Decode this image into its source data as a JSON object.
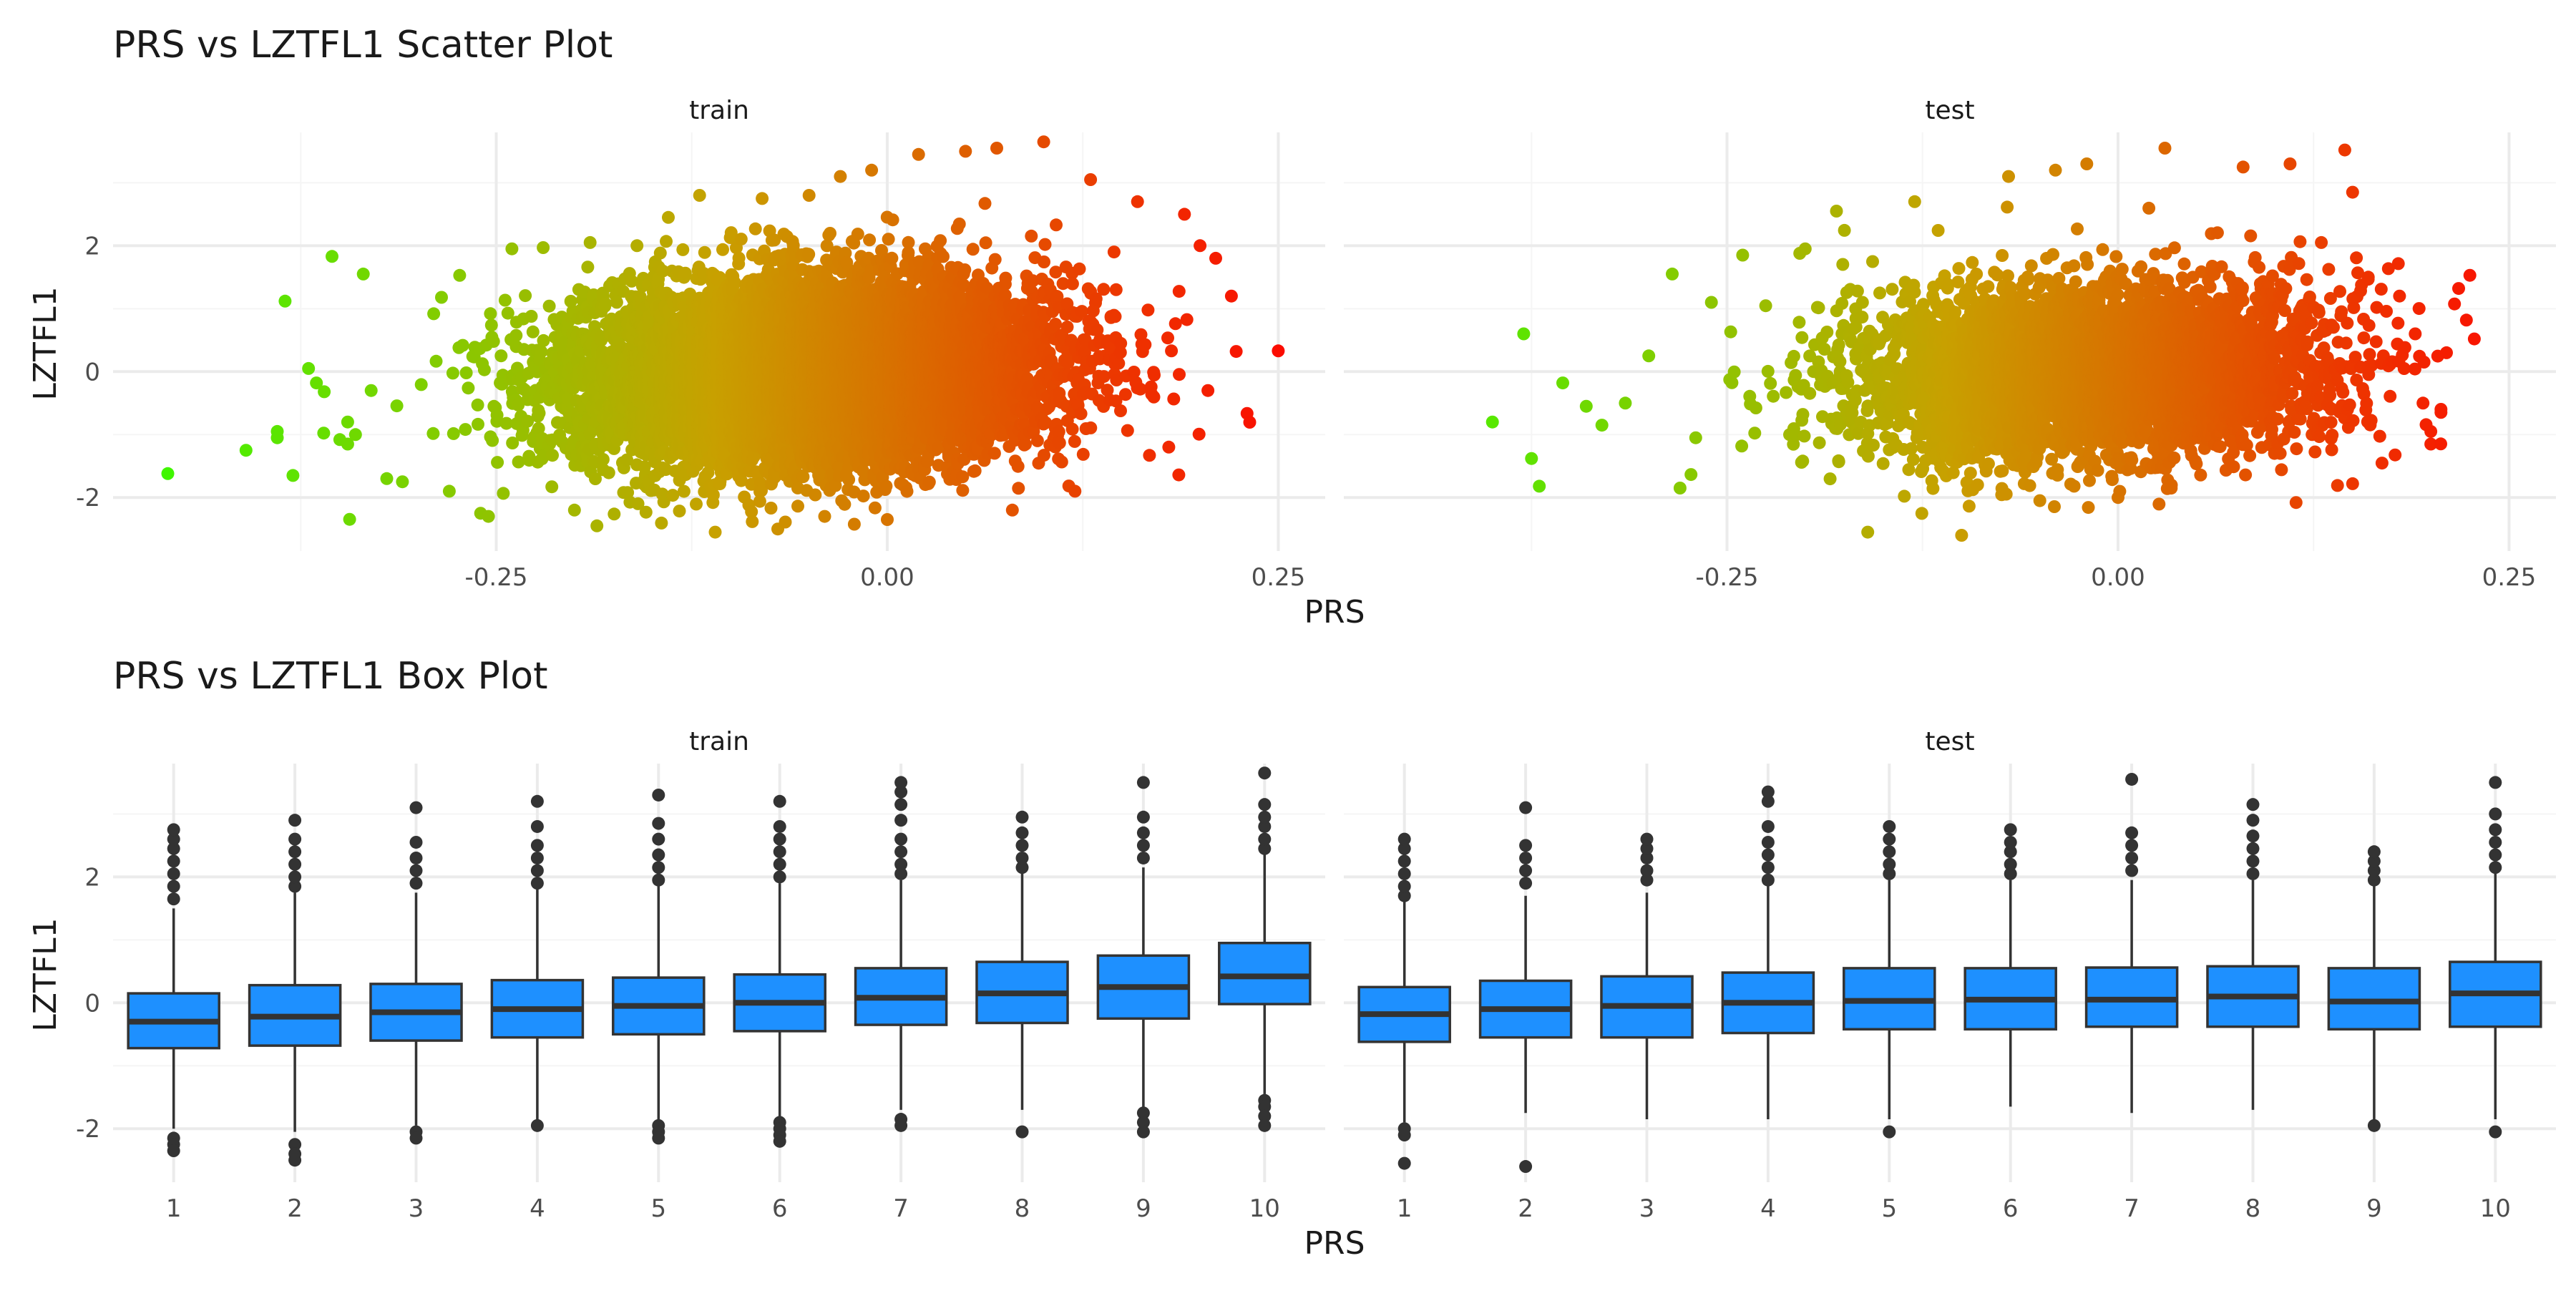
{
  "colors": {
    "background": "#ffffff",
    "grid_major": "#ebebeb",
    "grid_minor": "#f5f5f5",
    "axis_text": "#4d4d4d",
    "title_text": "#1a1a1a",
    "box_fill": "#1e90ff",
    "box_stroke": "#333333",
    "gradient_low": "#33ff00",
    "gradient_mid": "#c8a000",
    "gradient_high": "#ff0000"
  },
  "chart_data": [
    {
      "type": "scatter",
      "title": "PRS vs LZTFL1 Scatter Plot",
      "xlabel": "PRS",
      "ylabel": "LZTFL1",
      "xlim": [
        -0.495,
        0.28
      ],
      "ylim": [
        -2.85,
        3.8
      ],
      "x_ticks": [
        -0.25,
        0.0,
        0.25
      ],
      "x_tick_labels": [
        "-0.25",
        "0.00",
        "0.25"
      ],
      "y_ticks": [
        -2,
        0,
        2
      ],
      "y_tick_labels": [
        "-2",
        "0",
        "2"
      ],
      "color_by": "PRS",
      "color_scale": [
        "#33ff00",
        "#c8a000",
        "#ff0000"
      ],
      "grid": true,
      "facets": [
        {
          "strip": "train",
          "summary": {
            "n_approx": 9000,
            "x_mean": -0.05,
            "x_sd": 0.075,
            "y_slope": 5.5,
            "y_sd": 0.85
          },
          "points": [
            [
              -0.46,
              -1.62
            ],
            [
              -0.41,
              -1.25
            ],
            [
              -0.39,
              -0.95
            ],
            [
              -0.39,
              -1.05
            ],
            [
              -0.385,
              1.12
            ],
            [
              -0.38,
              -1.65
            ],
            [
              -0.37,
              0.05
            ],
            [
              -0.365,
              -0.18
            ],
            [
              -0.36,
              -0.32
            ],
            [
              -0.355,
              1.83
            ],
            [
              -0.35,
              -1.08
            ],
            [
              -0.345,
              -0.8
            ],
            [
              -0.34,
              -1.0
            ],
            [
              -0.345,
              -1.15
            ],
            [
              -0.335,
              1.55
            ],
            [
              -0.33,
              -0.3
            ],
            [
              -0.32,
              -1.7
            ],
            [
              -0.31,
              -1.75
            ],
            [
              -0.29,
              0.92
            ],
            [
              -0.285,
              1.18
            ],
            [
              -0.28,
              -1.9
            ],
            [
              -0.26,
              -2.25
            ],
            [
              -0.255,
              -2.3
            ],
            [
              -0.24,
              1.95
            ],
            [
              -0.22,
              1.97
            ],
            [
              -0.2,
              -2.2
            ],
            [
              -0.19,
              2.05
            ],
            [
              -0.16,
              2.0
            ],
            [
              -0.14,
              2.45
            ],
            [
              -0.12,
              2.8
            ],
            [
              -0.11,
              -2.55
            ],
            [
              -0.08,
              2.75
            ],
            [
              -0.07,
              -2.5
            ],
            [
              -0.05,
              2.8
            ],
            [
              -0.03,
              3.1
            ],
            [
              -0.01,
              3.2
            ],
            [
              0.02,
              3.45
            ],
            [
              0.05,
              3.5
            ],
            [
              0.07,
              3.55
            ],
            [
              0.1,
              3.65
            ],
            [
              0.13,
              3.05
            ],
            [
              0.16,
              2.7
            ],
            [
              0.19,
              2.5
            ],
            [
              0.2,
              2.0
            ],
            [
              0.21,
              1.8
            ],
            [
              0.22,
              1.2
            ],
            [
              0.205,
              -0.3
            ],
            [
              0.25,
              0.33
            ],
            [
              0.18,
              -1.2
            ],
            [
              0.12,
              -1.9
            ],
            [
              0.08,
              -2.2
            ],
            [
              0.0,
              -2.35
            ],
            [
              -0.04,
              -2.3
            ],
            [
              0.145,
              1.9
            ]
          ]
        },
        {
          "strip": "test",
          "summary": {
            "n_approx": 4500,
            "x_mean": -0.02,
            "x_sd": 0.075,
            "y_slope": 4.0,
            "y_sd": 0.8
          },
          "points": [
            [
              -0.4,
              -0.8
            ],
            [
              -0.38,
              0.6
            ],
            [
              -0.375,
              -1.38
            ],
            [
              -0.37,
              -1.82
            ],
            [
              -0.355,
              -0.18
            ],
            [
              -0.34,
              -0.55
            ],
            [
              -0.33,
              -0.85
            ],
            [
              -0.315,
              -0.5
            ],
            [
              -0.3,
              0.25
            ],
            [
              -0.28,
              -1.85
            ],
            [
              -0.285,
              1.55
            ],
            [
              -0.27,
              -1.05
            ],
            [
              -0.26,
              1.1
            ],
            [
              -0.24,
              1.85
            ],
            [
              -0.21,
              -1.0
            ],
            [
              -0.2,
              1.95
            ],
            [
              -0.18,
              2.55
            ],
            [
              -0.16,
              -2.55
            ],
            [
              -0.13,
              2.7
            ],
            [
              -0.1,
              -2.6
            ],
            [
              -0.07,
              3.1
            ],
            [
              -0.04,
              3.2
            ],
            [
              -0.02,
              3.3
            ],
            [
              0.03,
              3.55
            ],
            [
              0.08,
              3.25
            ],
            [
              0.11,
              3.3
            ],
            [
              0.145,
              3.52
            ],
            [
              0.15,
              2.85
            ],
            [
              0.16,
              1.5
            ],
            [
              0.18,
              1.2
            ],
            [
              0.19,
              0.6
            ],
            [
              0.2,
              -0.95
            ],
            [
              0.2,
              -1.15
            ],
            [
              0.21,
              0.3
            ],
            [
              0.195,
              -0.5
            ],
            [
              0.15,
              -1.78
            ],
            [
              0.1,
              -1.3
            ],
            [
              0.0,
              -2.0
            ],
            [
              -0.05,
              -2.05
            ],
            [
              0.13,
              2.05
            ]
          ]
        }
      ]
    },
    {
      "type": "box",
      "title": "PRS vs LZTFL1 Box Plot",
      "xlabel": "PRS",
      "ylabel": "LZTFL1",
      "categories": [
        "1",
        "2",
        "3",
        "4",
        "5",
        "6",
        "7",
        "8",
        "9",
        "10"
      ],
      "ylim": [
        -2.85,
        3.8
      ],
      "y_ticks": [
        -2,
        0,
        2
      ],
      "y_tick_labels": [
        "-2",
        "0",
        "2"
      ],
      "grid": true,
      "facets": [
        {
          "strip": "train",
          "boxes": [
            {
              "q1": -0.72,
              "median": -0.3,
              "q3": 0.15,
              "whisker_low": -2.0,
              "whisker_high": 1.5,
              "outliers": [
                -2.15,
                -2.25,
                -2.35,
                1.65,
                1.85,
                2.05,
                2.25,
                2.45,
                2.6,
                2.75
              ]
            },
            {
              "q1": -0.68,
              "median": -0.22,
              "q3": 0.28,
              "whisker_low": -2.05,
              "whisker_high": 1.75,
              "outliers": [
                -2.25,
                -2.4,
                -2.5,
                1.85,
                2.0,
                2.2,
                2.4,
                2.6,
                2.9
              ]
            },
            {
              "q1": -0.6,
              "median": -0.15,
              "q3": 0.3,
              "whisker_low": -1.95,
              "whisker_high": 1.75,
              "outliers": [
                -2.05,
                -2.15,
                1.9,
                2.1,
                2.3,
                2.55,
                3.1
              ]
            },
            {
              "q1": -0.55,
              "median": -0.1,
              "q3": 0.36,
              "whisker_low": -1.9,
              "whisker_high": 1.8,
              "outliers": [
                -1.95,
                1.9,
                2.1,
                2.3,
                2.5,
                2.8,
                3.2
              ]
            },
            {
              "q1": -0.5,
              "median": -0.05,
              "q3": 0.4,
              "whisker_low": -1.85,
              "whisker_high": 1.85,
              "outliers": [
                -1.95,
                -2.05,
                -2.15,
                1.95,
                2.15,
                2.35,
                2.6,
                2.85,
                3.3
              ]
            },
            {
              "q1": -0.45,
              "median": 0.0,
              "q3": 0.45,
              "whisker_low": -1.8,
              "whisker_high": 1.9,
              "outliers": [
                -1.9,
                -2.0,
                -2.1,
                -2.2,
                2.0,
                2.2,
                2.4,
                2.6,
                2.8,
                3.2
              ]
            },
            {
              "q1": -0.35,
              "median": 0.08,
              "q3": 0.55,
              "whisker_low": -1.7,
              "whisker_high": 1.95,
              "outliers": [
                -1.85,
                -1.95,
                2.05,
                2.2,
                2.4,
                2.6,
                2.9,
                3.15,
                3.35,
                3.5
              ]
            },
            {
              "q1": -0.32,
              "median": 0.15,
              "q3": 0.65,
              "whisker_low": -1.7,
              "whisker_high": 2.05,
              "outliers": [
                -2.05,
                2.15,
                2.3,
                2.5,
                2.7,
                2.95
              ]
            },
            {
              "q1": -0.25,
              "median": 0.25,
              "q3": 0.75,
              "whisker_low": -1.7,
              "whisker_high": 2.15,
              "outliers": [
                -1.75,
                -1.9,
                -2.05,
                2.3,
                2.5,
                2.7,
                2.95,
                3.5
              ]
            },
            {
              "q1": -0.02,
              "median": 0.42,
              "q3": 0.95,
              "whisker_low": -1.45,
              "whisker_high": 2.35,
              "outliers": [
                -1.55,
                -1.65,
                -1.8,
                -1.95,
                2.45,
                2.6,
                2.8,
                2.95,
                3.15,
                3.65
              ]
            }
          ]
        },
        {
          "strip": "test",
          "boxes": [
            {
              "q1": -0.62,
              "median": -0.18,
              "q3": 0.25,
              "whisker_low": -1.9,
              "whisker_high": 1.6,
              "outliers": [
                -2.0,
                -2.1,
                -2.55,
                1.7,
                1.85,
                2.05,
                2.25,
                2.45,
                2.6
              ]
            },
            {
              "q1": -0.55,
              "median": -0.1,
              "q3": 0.35,
              "whisker_low": -1.75,
              "whisker_high": 1.7,
              "outliers": [
                -2.6,
                1.9,
                2.1,
                2.3,
                2.5,
                3.1
              ]
            },
            {
              "q1": -0.55,
              "median": -0.05,
              "q3": 0.42,
              "whisker_low": -1.85,
              "whisker_high": 1.75,
              "outliers": [
                1.95,
                2.1,
                2.3,
                2.45,
                2.6
              ]
            },
            {
              "q1": -0.48,
              "median": 0.0,
              "q3": 0.48,
              "whisker_low": -1.85,
              "whisker_high": 1.85,
              "outliers": [
                1.95,
                2.15,
                2.35,
                2.55,
                2.8,
                3.2,
                3.35
              ]
            },
            {
              "q1": -0.42,
              "median": 0.03,
              "q3": 0.55,
              "whisker_low": -1.85,
              "whisker_high": 1.95,
              "outliers": [
                -2.05,
                2.05,
                2.2,
                2.4,
                2.6,
                2.8
              ]
            },
            {
              "q1": -0.42,
              "median": 0.05,
              "q3": 0.55,
              "whisker_low": -1.65,
              "whisker_high": 1.95,
              "outliers": [
                2.05,
                2.2,
                2.4,
                2.55,
                2.75
              ]
            },
            {
              "q1": -0.38,
              "median": 0.05,
              "q3": 0.56,
              "whisker_low": -1.75,
              "whisker_high": 1.95,
              "outliers": [
                2.1,
                2.3,
                2.5,
                2.7,
                3.55
              ]
            },
            {
              "q1": -0.38,
              "median": 0.1,
              "q3": 0.58,
              "whisker_low": -1.7,
              "whisker_high": 1.95,
              "outliers": [
                2.05,
                2.25,
                2.45,
                2.65,
                2.9,
                3.15
              ]
            },
            {
              "q1": -0.42,
              "median": 0.02,
              "q3": 0.55,
              "whisker_low": -1.85,
              "whisker_high": 1.85,
              "outliers": [
                -1.95,
                1.95,
                2.1,
                2.25,
                2.4
              ]
            },
            {
              "q1": -0.38,
              "median": 0.15,
              "q3": 0.65,
              "whisker_low": -1.85,
              "whisker_high": 2.05,
              "outliers": [
                -2.05,
                2.15,
                2.35,
                2.55,
                2.75,
                3.0,
                3.5
              ]
            }
          ]
        }
      ]
    }
  ]
}
